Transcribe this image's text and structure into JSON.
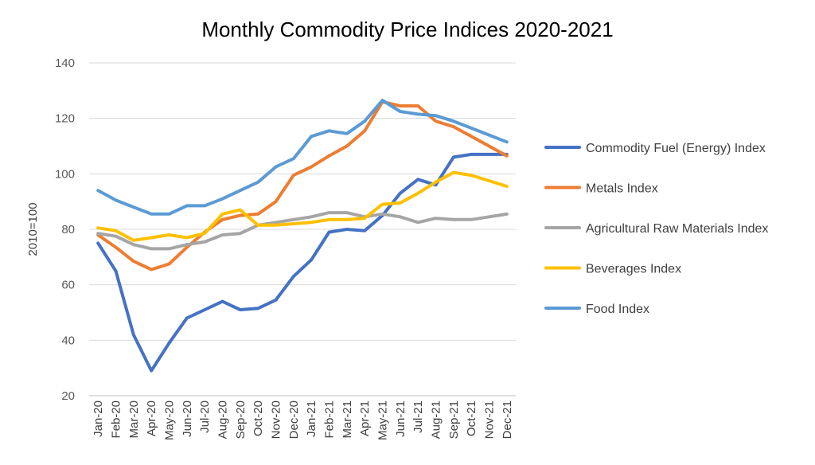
{
  "chart_data": {
    "type": "line",
    "title": "Monthly Commodity Price Indices 2020-2021",
    "xlabel": "",
    "ylabel": "2010=100",
    "ylim": [
      20,
      140
    ],
    "yticks": [
      20,
      40,
      60,
      80,
      100,
      120,
      140
    ],
    "grid": true,
    "legend_position": "right",
    "categories": [
      "Jan-20",
      "Feb-20",
      "Mar-20",
      "Apr-20",
      "May-20",
      "Jun-20",
      "Jul-20",
      "Aug-20",
      "Sep-20",
      "Oct-20",
      "Nov-20",
      "Dec-20",
      "Jan-21",
      "Feb-21",
      "Mar-21",
      "Apr-21",
      "May-21",
      "Jun-21",
      "Jul-21",
      "Aug-21",
      "Sep-21",
      "Oct-21",
      "Nov-21",
      "Dec-21"
    ],
    "series": [
      {
        "name": "Commodity Fuel (Energy) Index",
        "color": "#4472c4",
        "values": [
          75,
          65,
          42,
          29,
          39,
          48,
          51,
          54,
          51,
          51.5,
          54.5,
          63,
          69,
          79,
          80,
          79.5,
          85,
          93,
          98,
          96,
          106,
          107,
          107,
          107
        ]
      },
      {
        "name": "Metals Index",
        "color": "#ed7d31",
        "values": [
          78,
          73.5,
          68.5,
          65.5,
          67.5,
          73.5,
          79,
          83.5,
          85,
          85.5,
          90,
          99.5,
          102.5,
          106.5,
          110,
          115.5,
          126,
          124.5,
          124.5,
          119,
          117,
          113.5,
          110,
          106.5
        ]
      },
      {
        "name": "Agricultural Raw Materials Index",
        "color": "#a5a5a5",
        "values": [
          78.5,
          77.5,
          74.5,
          73,
          73,
          74.5,
          75.5,
          78,
          78.5,
          81.5,
          82.5,
          83.5,
          84.5,
          86,
          86,
          84.5,
          85.5,
          84.5,
          82.5,
          84,
          83.5,
          83.5,
          84.5,
          85.5
        ]
      },
      {
        "name": "Beverages Index",
        "color": "#ffc000",
        "values": [
          80.5,
          79.5,
          76,
          77,
          78,
          77,
          78.5,
          85.5,
          87,
          81.5,
          81.5,
          82,
          82.5,
          83.5,
          83.5,
          84,
          89,
          89.5,
          93,
          97,
          100.5,
          99.5,
          97.5,
          95.5
        ]
      },
      {
        "name": "Food Index",
        "color": "#5b9bd5",
        "values": [
          94,
          90.5,
          88,
          85.5,
          85.5,
          88.5,
          88.5,
          91,
          94,
          97,
          102.5,
          105.5,
          113.5,
          115.5,
          114.5,
          119,
          126.5,
          122.5,
          121.5,
          121,
          119,
          116.5,
          114,
          111.5
        ]
      }
    ]
  }
}
